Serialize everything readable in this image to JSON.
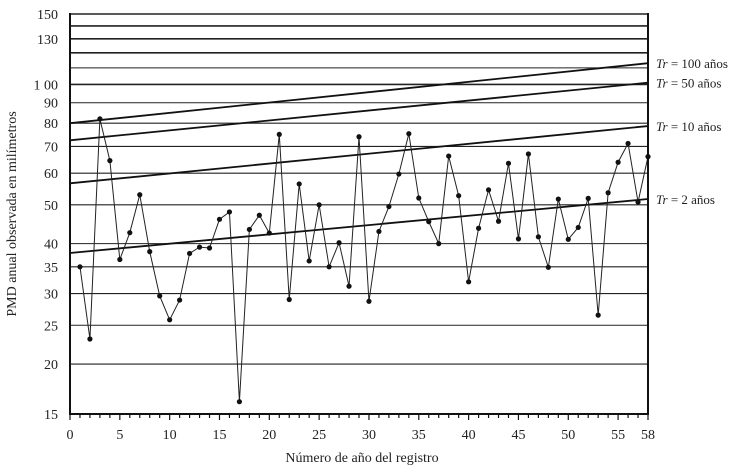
{
  "chart_data": {
    "type": "line",
    "title": "",
    "xlabel": "Número de año del registro",
    "ylabel": "PMD anual observada en milímetros",
    "y_scale": "log",
    "ylim": [
      15,
      150
    ],
    "xlim": [
      0,
      58
    ],
    "grid": true,
    "y_gridlines": [
      15,
      20,
      25,
      30,
      35,
      40,
      50,
      60,
      70,
      80,
      90,
      100,
      110,
      120,
      130,
      140,
      150
    ],
    "y_ticks": [
      {
        "value": 15,
        "label": "15"
      },
      {
        "value": 20,
        "label": "20"
      },
      {
        "value": 25,
        "label": "25"
      },
      {
        "value": 30,
        "label": "30"
      },
      {
        "value": 35,
        "label": "35"
      },
      {
        "value": 40,
        "label": "40"
      },
      {
        "value": 50,
        "label": "50"
      },
      {
        "value": 60,
        "label": "60"
      },
      {
        "value": 70,
        "label": "70"
      },
      {
        "value": 80,
        "label": "80"
      },
      {
        "value": 90,
        "label": "90"
      },
      {
        "value": 100,
        "label": "1 00"
      },
      {
        "value": 130,
        "label": "130"
      },
      {
        "value": 150,
        "label": "150"
      }
    ],
    "x_ticks": [
      {
        "value": 0,
        "label": "0"
      },
      {
        "value": 5,
        "label": "5"
      },
      {
        "value": 10,
        "label": "10"
      },
      {
        "value": 15,
        "label": "15"
      },
      {
        "value": 20,
        "label": "20"
      },
      {
        "value": 25,
        "label": "25"
      },
      {
        "value": 30,
        "label": "30"
      },
      {
        "value": 35,
        "label": "35"
      },
      {
        "value": 40,
        "label": "40"
      },
      {
        "value": 45,
        "label": "45"
      },
      {
        "value": 50,
        "label": "50"
      },
      {
        "value": 55,
        "label": "55"
      },
      {
        "value": 58,
        "label": "58"
      }
    ],
    "series": [
      {
        "x": [
          1,
          2,
          3,
          4,
          5,
          6,
          7,
          8,
          9,
          10,
          11,
          12,
          13,
          14,
          15,
          16,
          17,
          18,
          19,
          20,
          21,
          22,
          23,
          24,
          25,
          26,
          27,
          28,
          29,
          30,
          31,
          32,
          33,
          34,
          35,
          36,
          37,
          38,
          39,
          40,
          41,
          42,
          43,
          44,
          45,
          46,
          47,
          48,
          49,
          50,
          51,
          52,
          53,
          54,
          55,
          56,
          57,
          58
        ],
        "y": [
          35.0,
          23.1,
          82,
          64.5,
          36.5,
          42.6,
          53,
          38.2,
          29.6,
          25.8,
          28.9,
          37.8,
          39.2,
          39,
          46,
          48,
          16.1,
          43.4,
          47.1,
          42.5,
          75,
          29,
          56.4,
          36.2,
          50,
          35,
          40.2,
          31.3,
          74,
          28.7,
          42.9,
          49.5,
          59.7,
          75.3,
          52,
          45.4,
          40,
          66.2,
          52.7,
          32.1,
          43.7,
          54.5,
          45.5,
          63.5,
          41.1,
          67,
          41.6,
          34.9,
          51.7,
          41,
          43.9,
          51.9,
          26.5,
          53.6,
          63.9,
          71.2,
          50.8,
          66
        ]
      }
    ],
    "trend_lines": [
      {
        "label": "Tr = 100 años",
        "tr": "Tr",
        "text": " = 100 años",
        "y_start": 80,
        "y_end": 113
      },
      {
        "label": "Tr = 50 años",
        "tr": "Tr",
        "text": " = 50 años",
        "y_start": 72.5,
        "y_end": 101
      },
      {
        "label": "Tr = 10 años",
        "tr": "Tr",
        "text": " = 10 años",
        "y_start": 56.6,
        "y_end": 78.7
      },
      {
        "label": "Tr = 2 años",
        "tr": "Tr",
        "text": " = 2 años",
        "y_start": 37.9,
        "y_end": 51.7
      }
    ]
  }
}
